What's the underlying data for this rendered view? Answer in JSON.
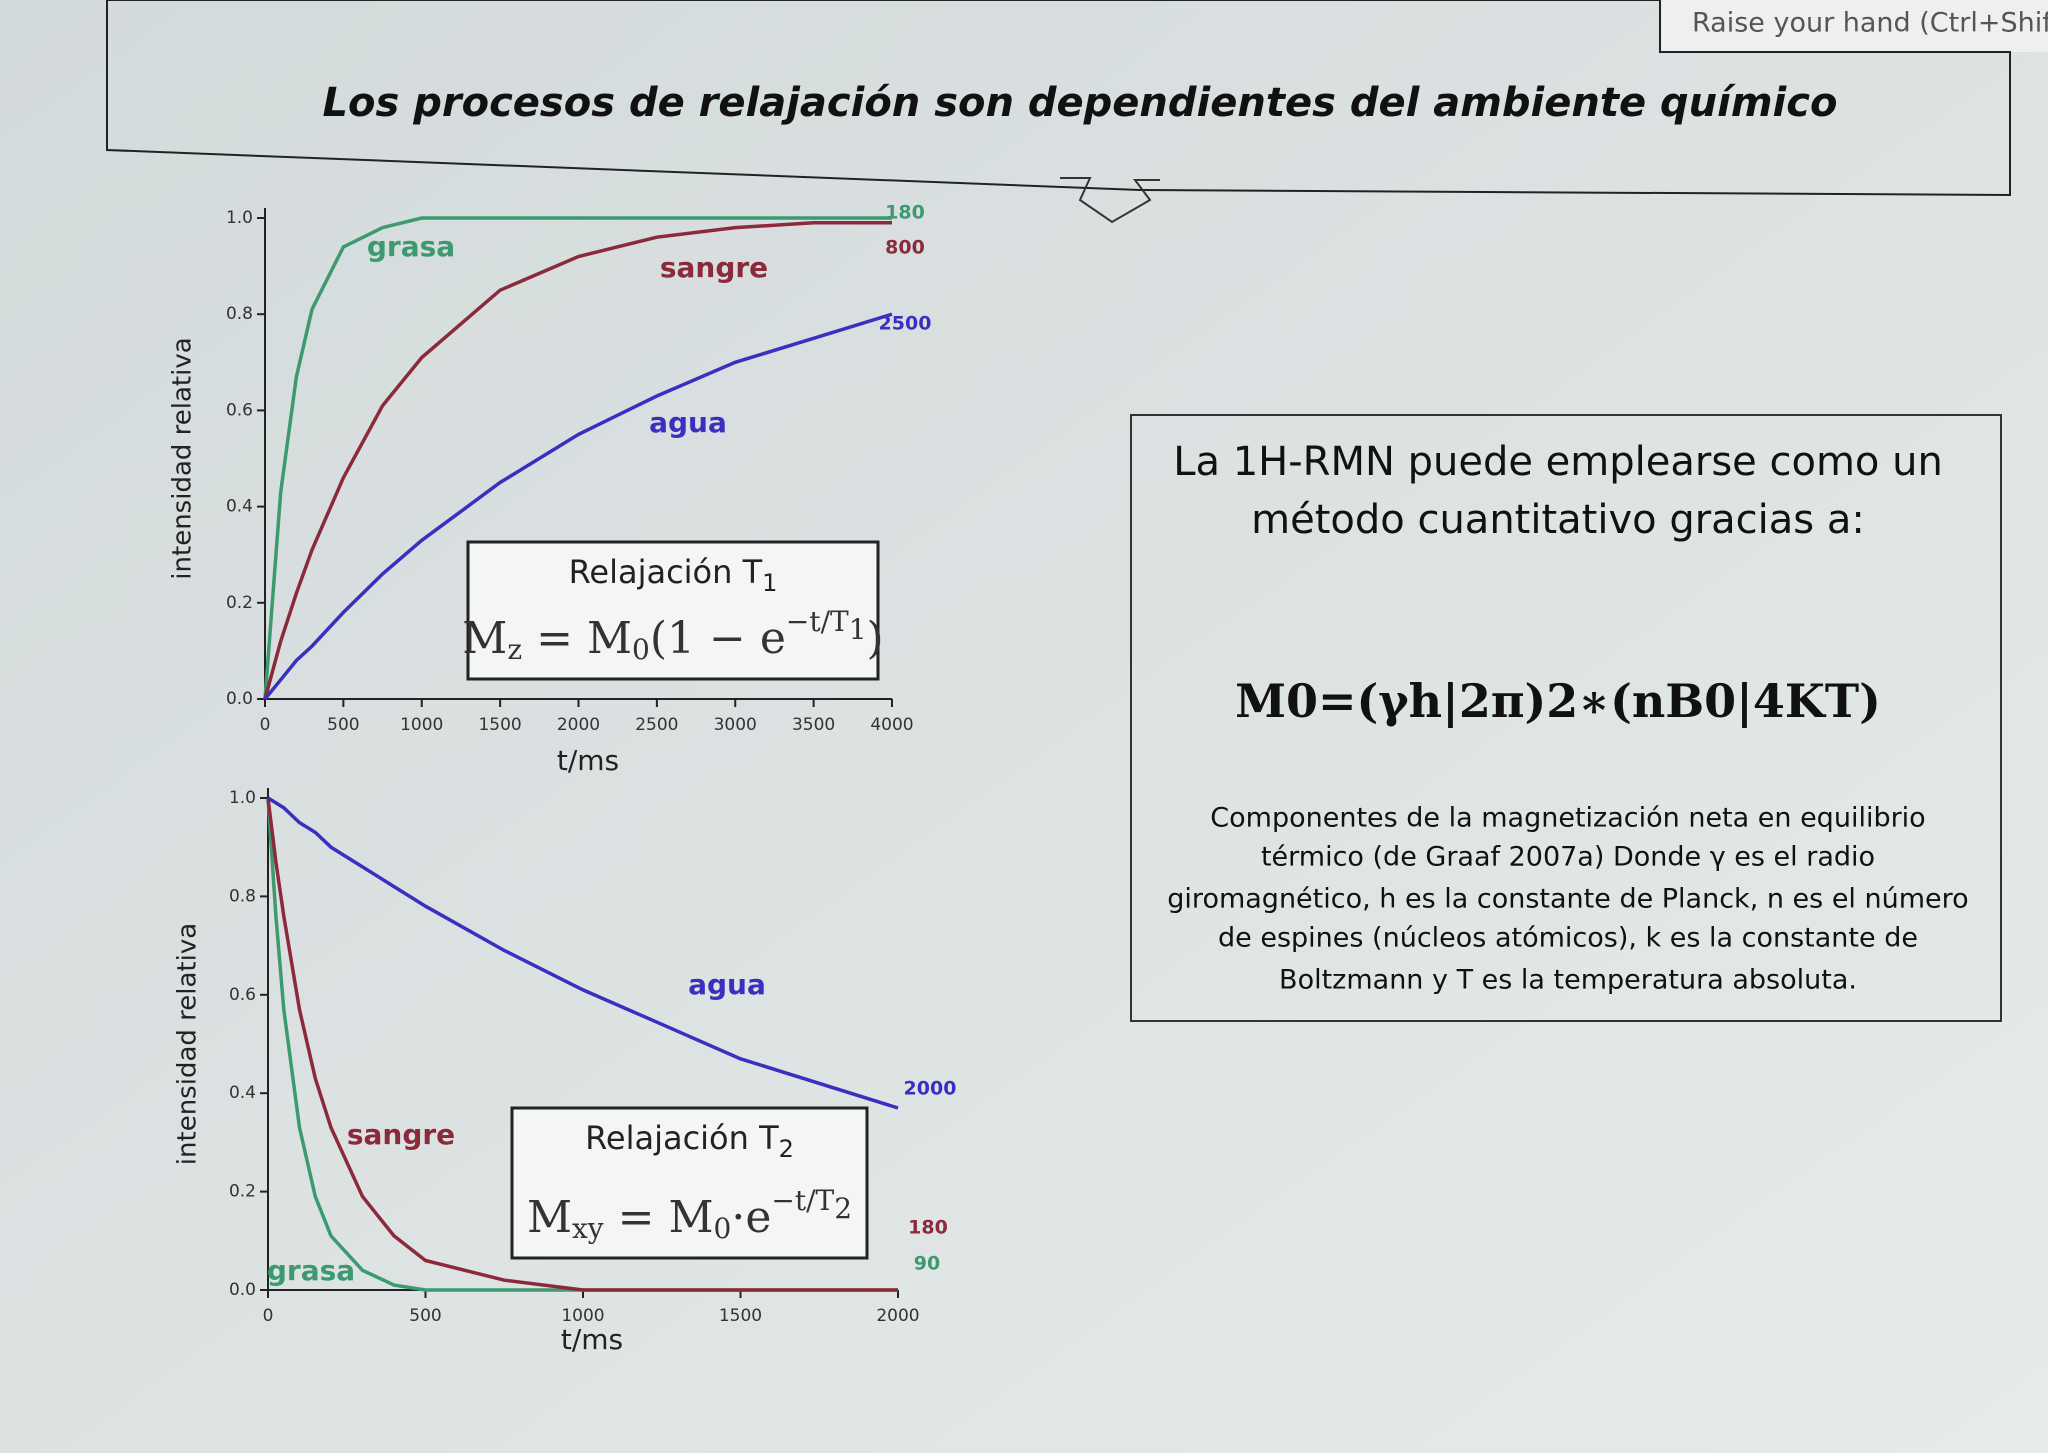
{
  "header": {
    "title": "Los procesos de relajación son dependientes del ambiente químico",
    "notice": "Raise your hand (Ctrl+Shift"
  },
  "info_box": {
    "lines": [
      "La 1H-RMN puede emplearse como un",
      "método cuantitativo gracias a:"
    ],
    "equation": "M0=(γh|2π)2∗(nB0|4KT)",
    "description": [
      "Componentes de la magnetización neta en equilibrio",
      "térmico (de Graaf 2007a) Donde γ es el radio",
      "giromagnético, h es la constante de Planck, n es el número",
      "de espines (núcleos atómicos), k es la constante de",
      "Boltzmann y T es la temperatura absoluta."
    ]
  },
  "chart_data": [
    {
      "type": "line",
      "x_label": "t/ms",
      "y_label": "intensidad relativa",
      "box_title": "Relajación T",
      "box_title_sub": "1",
      "formula": [
        {
          "text": "M"
        },
        {
          "text": "z",
          "pos": "sub"
        },
        {
          "text": " = M"
        },
        {
          "text": "0",
          "pos": "sub"
        },
        {
          "text": "(1 − e"
        },
        {
          "text": "−t/T",
          "pos": "sup"
        },
        {
          "text": "1",
          "pos": "supsub"
        },
        {
          "text": ")"
        }
      ],
      "x": [
        0,
        100,
        200,
        300,
        500,
        750,
        1000,
        1500,
        2000,
        2500,
        3000,
        3500,
        4000
      ],
      "series": [
        {
          "name": "grasa",
          "color": "#3c9a6e",
          "time_constant": 180,
          "values": [
            0,
            0.43,
            0.67,
            0.81,
            0.94,
            0.98,
            1.0,
            1.0,
            1.0,
            1.0,
            1.0,
            1.0,
            1.0
          ]
        },
        {
          "name": "sangre",
          "color": "#8b2a3a",
          "time_constant": 800,
          "values": [
            0,
            0.12,
            0.22,
            0.31,
            0.46,
            0.61,
            0.71,
            0.85,
            0.92,
            0.96,
            0.98,
            0.99,
            0.99
          ]
        },
        {
          "name": "agua",
          "color": "#3a2fc0",
          "time_constant": 2500,
          "values": [
            0,
            0.04,
            0.08,
            0.11,
            0.18,
            0.26,
            0.33,
            0.45,
            0.55,
            0.63,
            0.7,
            0.75,
            0.8
          ]
        }
      ],
      "xlim": [
        0,
        4000
      ],
      "xticks": [
        0,
        500,
        1000,
        1500,
        2000,
        2500,
        3000,
        3500,
        4000
      ],
      "ylim": [
        0,
        1
      ],
      "yticks": [
        {
          "value": 0,
          "label": "0.0"
        },
        0.2,
        0.4,
        0.6,
        0.8,
        {
          "value": 1,
          "label": "1.0"
        }
      ]
    },
    {
      "type": "line",
      "x_label": "t/ms",
      "y_label": "intensidad relativa",
      "box_title": "Relajación T",
      "box_title_sub": "2",
      "formula": [
        {
          "text": "M"
        },
        {
          "text": "xy",
          "pos": "sub"
        },
        {
          "text": " = M"
        },
        {
          "text": "0",
          "pos": "sub"
        },
        {
          "text": "·e"
        },
        {
          "text": "−t/T",
          "pos": "sup"
        },
        {
          "text": "2",
          "pos": "supsub"
        }
      ],
      "x": [
        0,
        25,
        50,
        100,
        150,
        200,
        300,
        400,
        500,
        750,
        1000,
        1250,
        1500,
        2000
      ],
      "series": [
        {
          "name": "grasa",
          "color": "#3c9a6e",
          "time_constant": 90,
          "values": [
            1,
            0.76,
            0.57,
            0.33,
            0.19,
            0.11,
            0.04,
            0.01,
            0,
            0,
            0,
            0,
            0,
            0
          ]
        },
        {
          "name": "sangre",
          "color": "#8b2a3a",
          "time_constant": 180,
          "values": [
            1,
            0.87,
            0.76,
            0.57,
            0.43,
            0.33,
            0.19,
            0.11,
            0.06,
            0.02,
            0,
            0,
            0,
            0
          ]
        },
        {
          "name": "agua",
          "color": "#3a2fc0",
          "time_constant": 2000,
          "values": [
            1,
            0.99,
            0.98,
            0.95,
            0.93,
            0.9,
            0.86,
            0.82,
            0.78,
            0.69,
            0.61,
            0.54,
            0.47,
            0.37
          ]
        }
      ],
      "xlim": [
        0,
        2000
      ],
      "xticks": [
        0,
        500,
        1000,
        1500,
        2000
      ],
      "ylim": [
        0,
        1
      ],
      "yticks": [
        {
          "value": 0,
          "label": "0.0"
        },
        0.2,
        0.4,
        0.6,
        0.8,
        {
          "value": 1,
          "label": "1.0"
        }
      ]
    }
  ]
}
